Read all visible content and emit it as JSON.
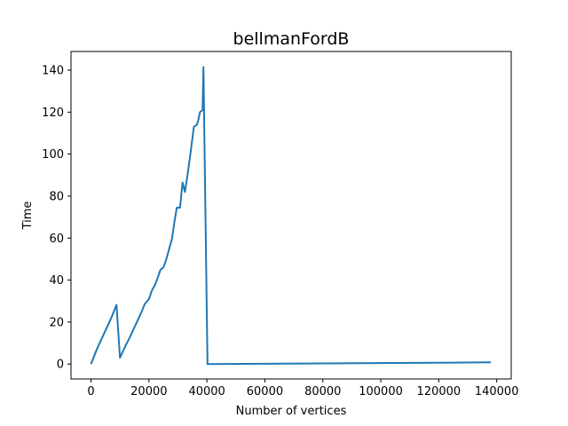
{
  "chart_data": {
    "type": "line",
    "title": "bellmanFordB",
    "xlabel": "Number of vertices",
    "ylabel": "Time",
    "xlim": [
      -6900,
      145000
    ],
    "ylim": [
      -7.1,
      148.9
    ],
    "x_ticks": [
      0,
      20000,
      40000,
      60000,
      80000,
      100000,
      120000,
      140000
    ],
    "y_ticks": [
      0,
      20,
      40,
      60,
      80,
      100,
      120,
      140
    ],
    "x_tick_labels": [
      "0",
      "20000",
      "40000",
      "60000",
      "80000",
      "100000",
      "120000",
      "140000"
    ],
    "y_tick_labels": [
      "0",
      "20",
      "40",
      "60",
      "80",
      "100",
      "120",
      "140"
    ],
    "grid": false,
    "legend": "none",
    "series": [
      {
        "color": "#1f77b4",
        "x": [
          0,
          2000,
          4000,
          5500,
          7000,
          8800,
          10000,
          12000,
          13500,
          15500,
          17500,
          18500,
          20000,
          21000,
          22000,
          23000,
          24000,
          25000,
          26000,
          28000,
          28700,
          29600,
          30700,
          31600,
          32400,
          33300,
          34300,
          35500,
          36500,
          37000,
          37600,
          38500,
          38800,
          40200,
          138000
        ],
        "y": [
          0,
          7,
          13,
          17.5,
          22,
          28.2,
          3,
          9,
          13,
          19,
          25,
          28.5,
          31,
          35,
          37.5,
          41,
          45,
          46,
          50,
          60,
          67,
          74.5,
          74.5,
          86.5,
          82,
          90,
          100,
          113,
          114,
          116,
          120,
          121,
          141.5,
          0,
          0.8
        ]
      }
    ]
  }
}
